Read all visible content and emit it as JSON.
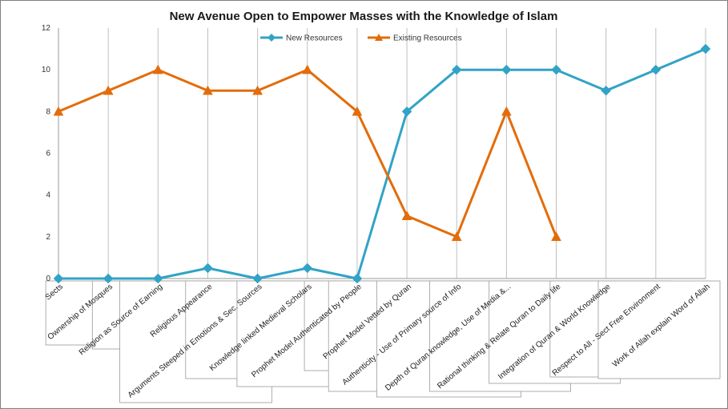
{
  "chart_data": {
    "type": "line",
    "title": "New Avenue Open to Empower Masses with the Knowledge of Islam",
    "xlabel": "",
    "ylabel": "",
    "ylim": [
      0,
      12
    ],
    "yticks": [
      "0",
      "2",
      "4",
      "6",
      "8",
      "10",
      "12"
    ],
    "grid": "vertical",
    "legend": "top-center",
    "categories": [
      "Sects",
      "Ownership of Mosques",
      "Religion as Source of Earning",
      "Religious Appearance",
      "Arguments Steeped in Emotions & Sec. Sources",
      "Knowledge linked Medieval Scholars",
      "Prophet Model Authenticated by People",
      "Prophet Model Vetted by Quran",
      "Authenticity - Use of Primary source of Info",
      "Depth of Quran knowledge, Use of Media &...",
      "Rational thinking & Relate Quran to Daily life",
      "Integration of Quran & World Knowledge",
      "Respect to All - Sect Free Environment",
      "Work of Allah explain Word of Allah"
    ],
    "series": [
      {
        "name": "New Resources",
        "color": "#31a3c6",
        "marker": "diamond",
        "values": [
          0,
          0,
          0,
          0.5,
          0,
          0.5,
          0,
          8,
          10,
          10,
          10,
          9,
          10,
          11
        ]
      },
      {
        "name": "Existing Resources",
        "color": "#e36c0a",
        "marker": "triangle",
        "values": [
          8,
          9,
          10,
          9,
          9,
          10,
          8,
          3,
          2,
          8,
          2,
          null,
          null,
          null
        ]
      }
    ]
  }
}
